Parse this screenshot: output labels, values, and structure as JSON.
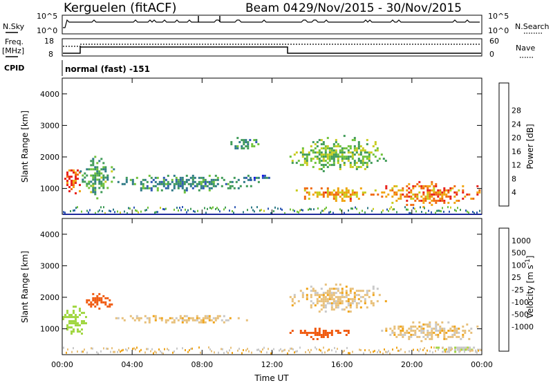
{
  "header": {
    "station": "Kerguelen (fitACF)",
    "beam": "Beam 04",
    "date_range": "29/Nov/2015 - 30/Nov/2015"
  },
  "top_panels": {
    "nsky_label": "N.Sky",
    "nsky_ticks": [
      "10^5",
      "10^0"
    ],
    "nsearch_label": "N.Search",
    "nsearch_ticks": [
      "10^5",
      "10^0"
    ],
    "freq_label": "Freq.",
    "freq_unit": "[MHz]",
    "freq_ticks": [
      "18",
      "8"
    ],
    "nave_label": "Nave",
    "nave_ticks": [
      "60",
      "0"
    ],
    "cpid_label": "CPID",
    "cpid_value": "normal (fast) -151"
  },
  "colors": {
    "power": [
      "#1010e8",
      "#2c56b4",
      "#2e7a86",
      "#3f9b57",
      "#6fc23a",
      "#c8cc1f",
      "#f0a410",
      "#f06a10",
      "#e8201a"
    ],
    "velocity": [
      "#e8101a",
      "#f05a10",
      "#f0a418",
      "#e8c07a",
      "#c8c8c8",
      "#a0d640",
      "#4ab83a",
      "#2f8d6e",
      "#2a5dbc",
      "#1f2fd6"
    ]
  },
  "chart_data": [
    {
      "type": "heatmap",
      "title": "",
      "xlabel": "",
      "ylabel": "Slant Range [km]",
      "x_ticks": [
        "00:00",
        "04:00",
        "08:00",
        "12:00",
        "16:00",
        "20:00",
        "00:00"
      ],
      "y_ticks": [
        "1000",
        "2000",
        "3000",
        "4000"
      ],
      "xlim": [
        0,
        24
      ],
      "ylim": [
        180,
        4500
      ],
      "colorbar": {
        "label": "Power [dB]",
        "ticks": [
          "4",
          "8",
          "12",
          "16",
          "20",
          "24",
          "28"
        ],
        "range": [
          0,
          30
        ]
      },
      "features": [
        {
          "t": [
            0.0,
            1.1
          ],
          "r": [
            800,
            1800
          ],
          "value": 26
        },
        {
          "t": [
            1.0,
            3.0
          ],
          "r": [
            700,
            2100
          ],
          "value": 12
        },
        {
          "t": [
            2.8,
            11.0
          ],
          "r": [
            900,
            1500
          ],
          "value": 10
        },
        {
          "t": [
            10.0,
            12.0
          ],
          "r": [
            1200,
            1500
          ],
          "value": 8
        },
        {
          "t": [
            13.0,
            18.5
          ],
          "r": [
            1500,
            2700
          ],
          "value": 15
        },
        {
          "t": [
            13.0,
            18.0
          ],
          "r": [
            600,
            1100
          ],
          "value": 22
        },
        {
          "t": [
            18.0,
            24.0
          ],
          "r": [
            400,
            1300
          ],
          "value": 24
        },
        {
          "t": [
            9.5,
            11.5
          ],
          "r": [
            2200,
            2700
          ],
          "value": 10
        }
      ]
    },
    {
      "type": "heatmap",
      "title": "",
      "xlabel": "Time UT",
      "ylabel": "Slant Range [km]",
      "x_ticks": [
        "00:00",
        "04:00",
        "08:00",
        "12:00",
        "16:00",
        "20:00",
        "00:00"
      ],
      "y_ticks": [
        "1000",
        "2000",
        "3000",
        "4000"
      ],
      "xlim": [
        0,
        24
      ],
      "ylim": [
        180,
        4500
      ],
      "colorbar": {
        "label": "Velocity [m s^-1]",
        "ticks": [
          "1000",
          "500",
          "100",
          "25",
          "-25",
          "-100",
          "-500",
          "-1000"
        ],
        "range": [
          -1000,
          1000
        ]
      },
      "features": [
        {
          "t": [
            0.0,
            1.5
          ],
          "r": [
            700,
            1800
          ],
          "value": 200
        },
        {
          "t": [
            1.0,
            3.0
          ],
          "r": [
            1600,
            2200
          ],
          "value": -150
        },
        {
          "t": [
            2.8,
            11.0
          ],
          "r": [
            1200,
            1500
          ],
          "value": 0
        },
        {
          "t": [
            13.0,
            16.5
          ],
          "r": [
            700,
            1100
          ],
          "value": -150
        },
        {
          "t": [
            13.0,
            18.5
          ],
          "r": [
            1500,
            2500
          ],
          "value": 0
        },
        {
          "t": [
            18.0,
            24.0
          ],
          "r": [
            600,
            1300
          ],
          "value": 0
        },
        {
          "t": [
            21.0,
            24.0
          ],
          "r": [
            250,
            500
          ],
          "value": 80
        }
      ]
    }
  ]
}
